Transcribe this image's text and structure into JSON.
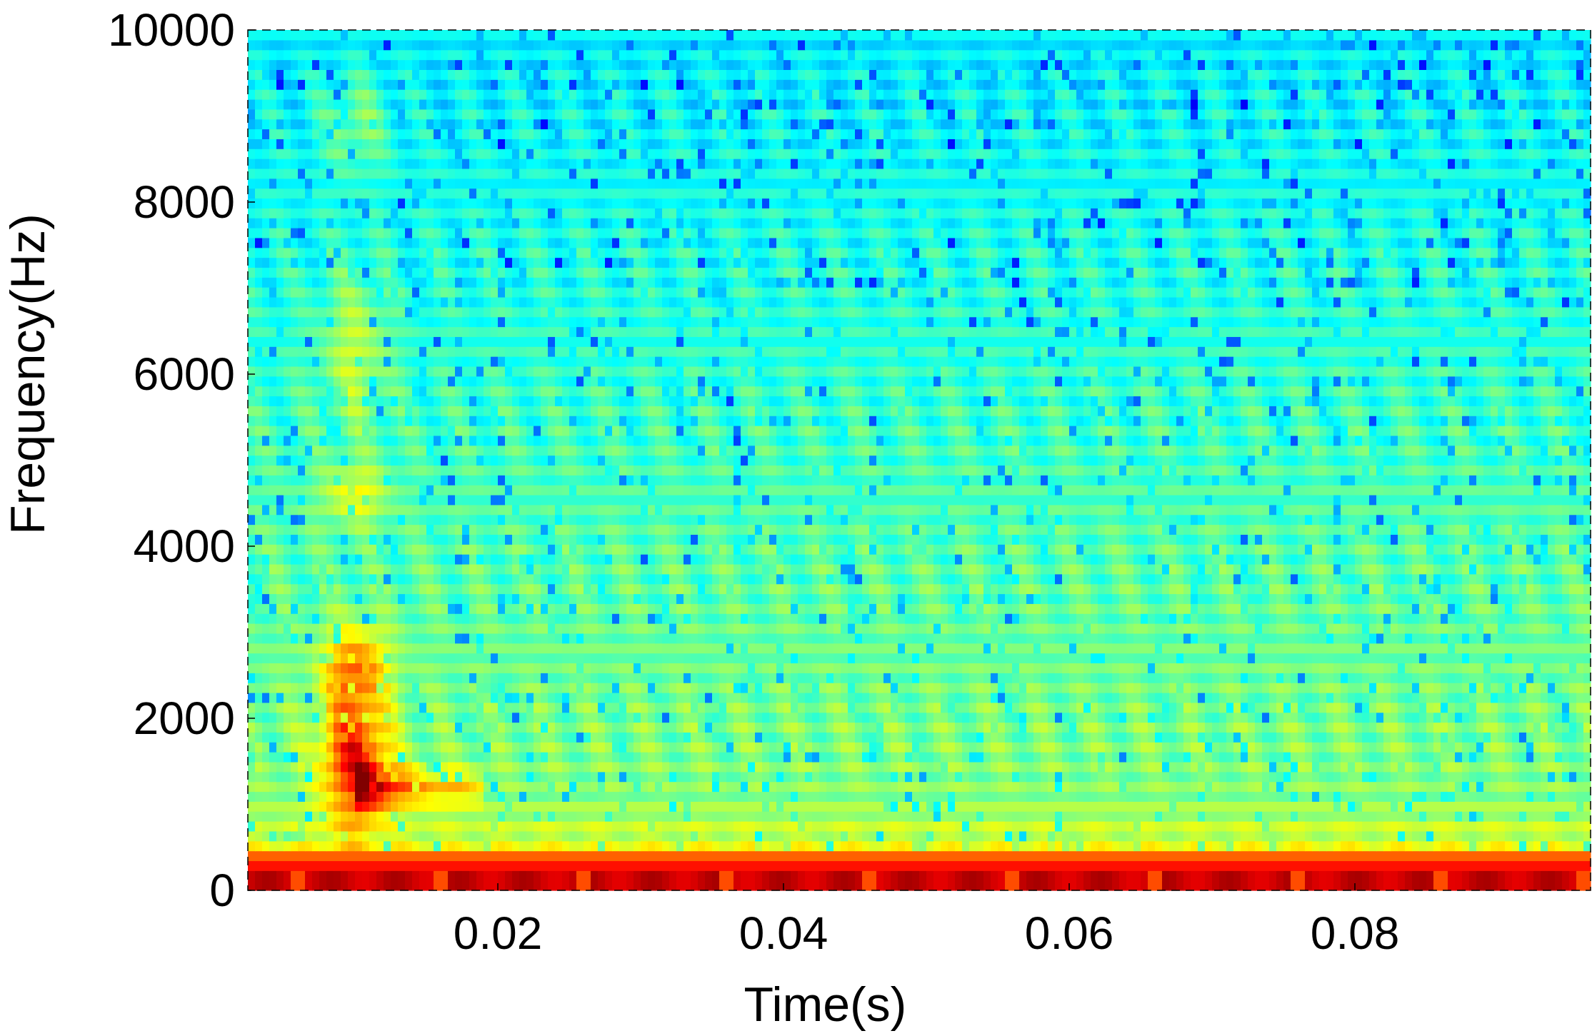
{
  "chart_data": {
    "type": "heatmap",
    "title": "",
    "xlabel": "Time(s)",
    "ylabel": "Frequency(Hz)",
    "xlim": [
      0.0025,
      0.0965
    ],
    "ylim": [
      0,
      10000
    ],
    "x_ticks": [
      0.02,
      0.04,
      0.06,
      0.08
    ],
    "x_tick_labels": [
      "0.02",
      "0.04",
      "0.06",
      "0.08"
    ],
    "y_ticks": [
      0,
      2000,
      4000,
      6000,
      8000,
      10000
    ],
    "y_tick_labels": [
      "0",
      "2000",
      "4000",
      "6000",
      "8000",
      "10000"
    ],
    "colormap": "jet",
    "grid": false,
    "legend": "none",
    "time_bins": 188,
    "freq_bins": 87,
    "features": {
      "low_frequency_band_hz": [
        0,
        450
      ],
      "onset_energy_time_s": 0.01,
      "onset_hot_region_hz": [
        800,
        2800
      ],
      "onset_tail_time_s": [
        0.01,
        0.019
      ],
      "onset_tail_freq_hz": 1200,
      "background_level": "cyan-green"
    }
  }
}
